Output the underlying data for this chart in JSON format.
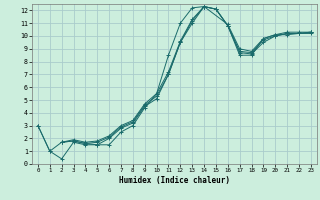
{
  "title": "",
  "xlabel": "Humidex (Indice chaleur)",
  "ylabel": "",
  "bg_color": "#cceedd",
  "grid_color": "#aacccc",
  "line_color": "#1a6b6b",
  "xlim": [
    -0.5,
    23.5
  ],
  "ylim": [
    0,
    12.5
  ],
  "xticks": [
    0,
    1,
    2,
    3,
    4,
    5,
    6,
    7,
    8,
    9,
    10,
    11,
    12,
    13,
    14,
    15,
    16,
    17,
    18,
    19,
    20,
    21,
    22,
    23
  ],
  "yticks": [
    0,
    1,
    2,
    3,
    4,
    5,
    6,
    7,
    8,
    9,
    10,
    11,
    12
  ],
  "series": [
    {
      "x": [
        0,
        1,
        2,
        3,
        4,
        5,
        6,
        7,
        8,
        9,
        10,
        11,
        12,
        13,
        14,
        15,
        16,
        17,
        18,
        19,
        20,
        21,
        22,
        23
      ],
      "y": [
        3,
        1,
        0.4,
        1.7,
        1.5,
        1.5,
        1.5,
        2.5,
        3.0,
        4.4,
        5.5,
        8.5,
        11.0,
        12.2,
        12.3,
        12.1,
        10.8,
        8.5,
        8.5,
        9.8,
        10.1,
        10.1,
        10.2,
        10.2
      ]
    },
    {
      "x": [
        0,
        1,
        2,
        3,
        4,
        5,
        6,
        7,
        8,
        9,
        10,
        11,
        12,
        13,
        14,
        15,
        16,
        17,
        18,
        19,
        20,
        21,
        22,
        23
      ],
      "y": [
        3,
        1,
        1.7,
        1.8,
        1.6,
        1.5,
        2.0,
        2.8,
        3.2,
        4.5,
        5.1,
        7.0,
        9.5,
        11.0,
        12.3,
        12.1,
        10.8,
        8.7,
        8.6,
        9.5,
        10.0,
        10.2,
        10.2,
        10.3
      ]
    },
    {
      "x": [
        2,
        3,
        4,
        5,
        6,
        7,
        8,
        9,
        10,
        11,
        12,
        13,
        14,
        15,
        16,
        17,
        18,
        19,
        20,
        21,
        22,
        23
      ],
      "y": [
        1.7,
        1.8,
        1.6,
        1.7,
        2.1,
        2.9,
        3.3,
        4.6,
        5.3,
        7.0,
        9.5,
        11.2,
        12.3,
        12.1,
        10.8,
        8.8,
        8.7,
        9.7,
        10.0,
        10.2,
        10.2,
        10.3
      ]
    },
    {
      "x": [
        2,
        3,
        4,
        5,
        6,
        7,
        8,
        9,
        10,
        11,
        12,
        13,
        14,
        16,
        17,
        18,
        19,
        20,
        21,
        22,
        23
      ],
      "y": [
        1.7,
        1.9,
        1.7,
        1.8,
        2.2,
        3.0,
        3.4,
        4.7,
        5.5,
        7.2,
        9.6,
        11.3,
        12.3,
        10.9,
        9.0,
        8.8,
        9.8,
        10.1,
        10.3,
        10.3,
        10.3
      ]
    }
  ]
}
